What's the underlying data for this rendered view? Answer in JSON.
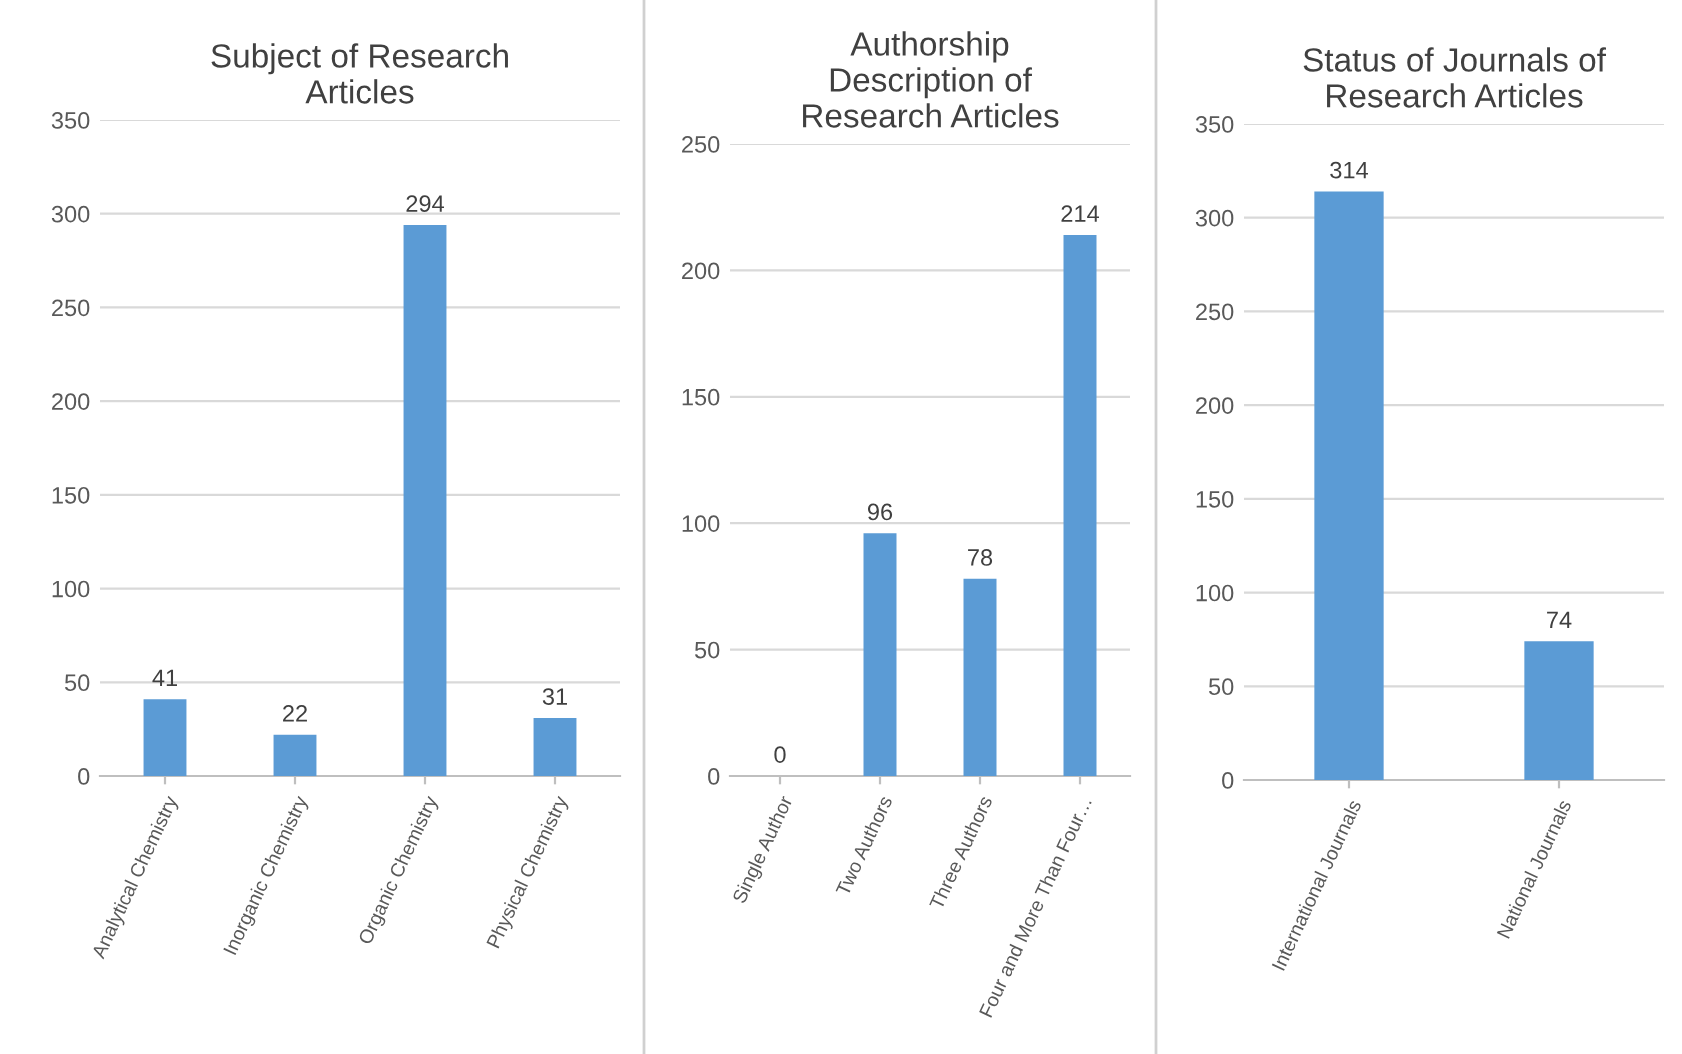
{
  "chart_data": [
    {
      "type": "bar",
      "title": "Subject of Research\nArticles",
      "categories": [
        "Analytical Chemistry",
        "Inorganic Chemistry",
        "Organic Chemistry",
        "Physical Chemistry"
      ],
      "values": [
        41,
        22,
        294,
        31
      ],
      "color": "#5b9bd5",
      "ylim": [
        0,
        350
      ],
      "yticks": [
        0,
        50,
        100,
        150,
        200,
        250,
        300,
        350
      ],
      "grid": "y",
      "data_labels": true
    },
    {
      "type": "bar",
      "title": "Authorship\nDescription of\nResearch Articles",
      "categories": [
        "Single Author",
        "Two Authors",
        "Three Authors",
        "Four and More Than Four…"
      ],
      "values": [
        0,
        96,
        78,
        214
      ],
      "color": "#5b9bd5",
      "ylim": [
        0,
        250
      ],
      "yticks": [
        0,
        50,
        100,
        150,
        200,
        250
      ],
      "grid": "y",
      "data_labels": true
    },
    {
      "type": "bar",
      "title": "Status of Journals of\nResearch Articles",
      "categories": [
        "International Journals",
        "National Journals"
      ],
      "values": [
        314,
        74
      ],
      "color": "#5b9bd5",
      "ylim": [
        0,
        350
      ],
      "yticks": [
        0,
        50,
        100,
        150,
        200,
        250,
        300,
        350
      ],
      "grid": "y",
      "data_labels": true
    }
  ]
}
